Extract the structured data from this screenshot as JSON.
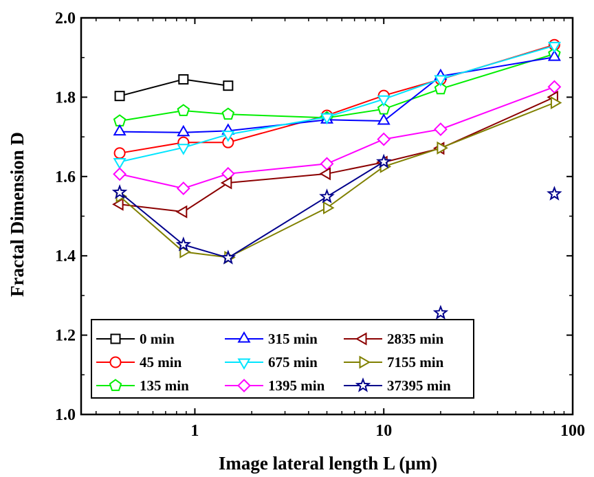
{
  "chart_data": {
    "type": "line",
    "title": "",
    "xlabel": "Image lateral length L (μm)",
    "ylabel": "Fractal Dimension D",
    "xscale": "log",
    "xlim": [
      0.25,
      100
    ],
    "ylim": [
      1.0,
      2.0
    ],
    "xticks": [
      {
        "value": 1,
        "label": "1"
      },
      {
        "value": 10,
        "label": "10"
      },
      {
        "value": 100,
        "label": "100"
      }
    ],
    "yticks": [
      {
        "value": 1.0,
        "label": "1.0"
      },
      {
        "value": 1.2,
        "label": "1.2"
      },
      {
        "value": 1.4,
        "label": "1.4"
      },
      {
        "value": 1.6,
        "label": "1.6"
      },
      {
        "value": 1.8,
        "label": "1.8"
      },
      {
        "value": 2.0,
        "label": "2.0"
      }
    ],
    "grid": false,
    "legend_position": "bottom-left",
    "series": [
      {
        "name": "0 min",
        "color": "#000000",
        "marker": "square",
        "x": [
          0.4,
          0.87,
          1.5
        ],
        "y": [
          1.803,
          1.845,
          1.829
        ]
      },
      {
        "name": "45 min",
        "color": "#ff0000",
        "marker": "circle",
        "x": [
          0.4,
          0.87,
          1.5,
          5,
          10,
          20,
          80
        ],
        "y": [
          1.659,
          1.686,
          1.686,
          1.754,
          1.804,
          1.845,
          1.932
        ]
      },
      {
        "name": "135 min",
        "color": "#00ee00",
        "marker": "pentagon",
        "x": [
          0.4,
          0.87,
          1.5,
          5,
          10,
          20,
          80
        ],
        "y": [
          1.74,
          1.766,
          1.757,
          1.748,
          1.77,
          1.821,
          1.909
        ]
      },
      {
        "name": "315 min",
        "color": "#0000ff",
        "marker": "triangle-up",
        "x": [
          0.4,
          0.87,
          1.5,
          5,
          10,
          20,
          80
        ],
        "y": [
          1.713,
          1.711,
          1.715,
          1.743,
          1.74,
          1.853,
          1.901
        ]
      },
      {
        "name": "675 min",
        "color": "#00e5ff",
        "marker": "triangle-down",
        "x": [
          0.4,
          0.87,
          1.5,
          5,
          10,
          20,
          80
        ],
        "y": [
          1.637,
          1.673,
          1.706,
          1.75,
          1.795,
          1.846,
          1.93
        ]
      },
      {
        "name": "1395 min",
        "color": "#ff00ff",
        "marker": "diamond",
        "x": [
          0.4,
          0.87,
          1.5,
          5,
          10,
          20,
          80
        ],
        "y": [
          1.606,
          1.57,
          1.607,
          1.632,
          1.694,
          1.719,
          1.826
        ]
      },
      {
        "name": "2835 min",
        "color": "#8b0000",
        "marker": "triangle-left",
        "x": [
          0.4,
          0.87,
          1.5,
          5,
          10,
          20,
          80
        ],
        "y": [
          1.53,
          1.511,
          1.584,
          1.607,
          1.636,
          1.671,
          1.8
        ]
      },
      {
        "name": "7155 min",
        "color": "#808000",
        "marker": "triangle-right",
        "x": [
          0.4,
          0.87,
          1.5,
          5,
          10,
          20,
          80
        ],
        "y": [
          1.55,
          1.41,
          1.396,
          1.521,
          1.625,
          1.672,
          1.786
        ]
      },
      {
        "name": "37395 min",
        "color": "#00008b",
        "marker": "star",
        "x": [
          0.4,
          0.87,
          1.5,
          5,
          10
        ],
        "y": [
          1.56,
          1.428,
          1.395,
          1.549,
          1.637
        ],
        "extra_points": {
          "x": [
            20,
            80
          ],
          "y": [
            1.256,
            1.556
          ]
        }
      }
    ],
    "legend": {
      "columns": [
        [
          "0 min",
          "45 min",
          "135 min"
        ],
        [
          "315 min",
          "675 min",
          "1395 min"
        ],
        [
          "2835 min",
          "7155 min",
          "37395 min"
        ]
      ]
    }
  }
}
